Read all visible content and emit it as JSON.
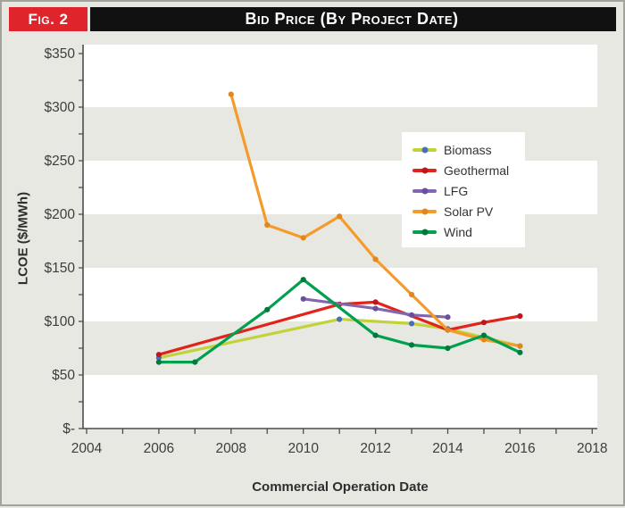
{
  "figure": {
    "fig_label": "Fig. 2",
    "title": "Bid Price (By Project Date)"
  },
  "chart_data": {
    "type": "line",
    "title": "Bid Price (By Project Date)",
    "xlabel": "Commercial Operation Date",
    "ylabel": "LCOE ($/MWh)",
    "xlim": [
      2004,
      2018
    ],
    "ylim": [
      0,
      350
    ],
    "x_tick_labels": [
      "2004",
      "2006",
      "2008",
      "2010",
      "2012",
      "2014",
      "2016",
      "2018"
    ],
    "x_tick_values": [
      2004,
      2006,
      2008,
      2010,
      2012,
      2014,
      2016,
      2018
    ],
    "y_tick_labels": [
      "$350",
      "$300",
      "$250",
      "$200",
      "$150",
      "$100",
      "$50",
      "$-"
    ],
    "y_tick_values": [
      350,
      300,
      250,
      200,
      150,
      100,
      50,
      0
    ],
    "grid": "horizontal alternating bands",
    "band_gray": "#e8e8e3",
    "plot_background": "#ffffff",
    "legend_position": "inside upper right",
    "legend_order": [
      "Biomass",
      "Geothermal",
      "LFG",
      "Solar PV",
      "Wind"
    ],
    "series": [
      {
        "name": "Biomass",
        "color": "#c2d23a",
        "marker_color": "#4a6fb5",
        "points": [
          [
            2006,
            66
          ],
          [
            2011,
            102
          ],
          [
            2013,
            98
          ],
          [
            2014,
            93
          ],
          [
            2016,
            77
          ]
        ]
      },
      {
        "name": "Geothermal",
        "color": "#e2231a",
        "marker_color": "#c0151c",
        "points": [
          [
            2006,
            69
          ],
          [
            2011,
            116
          ],
          [
            2012,
            118
          ],
          [
            2014,
            92
          ],
          [
            2015,
            99
          ],
          [
            2016,
            105
          ]
        ]
      },
      {
        "name": "LFG",
        "color": "#8168ae",
        "marker_color": "#6a4f9e",
        "points": [
          [
            2010,
            121
          ],
          [
            2012,
            112
          ],
          [
            2013,
            106
          ],
          [
            2014,
            104
          ]
        ]
      },
      {
        "name": "Solar PV",
        "color": "#f49b2c",
        "marker_color": "#e0871f",
        "points": [
          [
            2008,
            312
          ],
          [
            2009,
            190
          ],
          [
            2010,
            178
          ],
          [
            2011,
            198
          ],
          [
            2012,
            158
          ],
          [
            2013,
            125
          ],
          [
            2014,
            92
          ],
          [
            2015,
            83
          ],
          [
            2016,
            77
          ]
        ]
      },
      {
        "name": "Wind",
        "color": "#00a04e",
        "marker_color": "#00793c",
        "points": [
          [
            2006,
            62
          ],
          [
            2007,
            62
          ],
          [
            2009,
            111
          ],
          [
            2010,
            139
          ],
          [
            2012,
            87
          ],
          [
            2013,
            78
          ],
          [
            2014,
            75
          ],
          [
            2015,
            87
          ],
          [
            2016,
            71
          ]
        ]
      }
    ]
  }
}
